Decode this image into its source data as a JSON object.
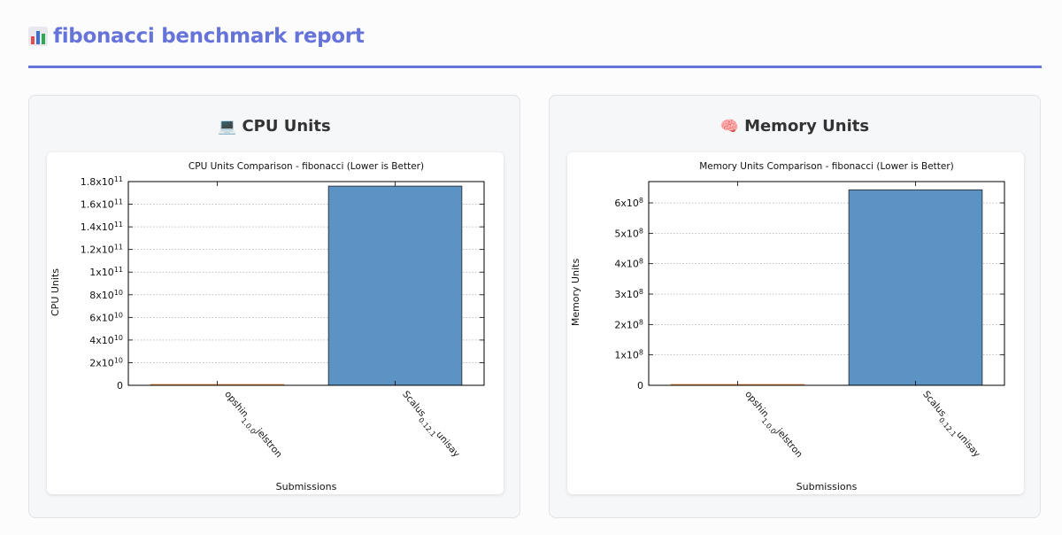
{
  "page": {
    "title_icon": "bar-chart-icon",
    "title": "fibonacci benchmark report"
  },
  "panels": [
    {
      "heading": "CPU Units",
      "icon": "laptop-icon"
    },
    {
      "heading": "Memory Units",
      "icon": "brain-icon"
    }
  ],
  "chart_data": [
    {
      "type": "bar",
      "title": "CPU Units Comparison - fibonacci (Lower is Better)",
      "xlabel": "Submissions",
      "ylabel": "CPU Units",
      "categories": [
        "opshin_1.0.0_jelstron",
        "Scalus_0.12.1_unisay"
      ],
      "values": [
        120000000,
        176000000000
      ],
      "bar_colors": [
        "#e08a3c",
        "#5b93c4"
      ],
      "ylim": [
        0,
        180000000000
      ],
      "yticks": [
        {
          "v": 0,
          "m": "0",
          "e": ""
        },
        {
          "v": 20000000000,
          "m": "2x10",
          "e": "10"
        },
        {
          "v": 40000000000,
          "m": "4x10",
          "e": "10"
        },
        {
          "v": 60000000000,
          "m": "6x10",
          "e": "10"
        },
        {
          "v": 80000000000,
          "m": "8x10",
          "e": "10"
        },
        {
          "v": 100000000000,
          "m": "1x10",
          "e": "11"
        },
        {
          "v": 120000000000,
          "m": "1.2x10",
          "e": "11"
        },
        {
          "v": 140000000000,
          "m": "1.4x10",
          "e": "11"
        },
        {
          "v": 160000000000,
          "m": "1.6x10",
          "e": "11"
        },
        {
          "v": 180000000000,
          "m": "1.8x10",
          "e": "11"
        }
      ],
      "grid": true
    },
    {
      "type": "bar",
      "title": "Memory Units Comparison - fibonacci (Lower is Better)",
      "xlabel": "Submissions",
      "ylabel": "Memory Units",
      "categories": [
        "opshin_1.0.0_jelstron",
        "Scalus_0.12.1_unisay"
      ],
      "values": [
        2000000,
        643000000
      ],
      "bar_colors": [
        "#e08a3c",
        "#5b93c4"
      ],
      "ylim": [
        0,
        670000000
      ],
      "yticks": [
        {
          "v": 0,
          "m": "0",
          "e": ""
        },
        {
          "v": 100000000,
          "m": "1x10",
          "e": "8"
        },
        {
          "v": 200000000,
          "m": "2x10",
          "e": "8"
        },
        {
          "v": 300000000,
          "m": "3x10",
          "e": "8"
        },
        {
          "v": 400000000,
          "m": "4x10",
          "e": "8"
        },
        {
          "v": 500000000,
          "m": "5x10",
          "e": "8"
        },
        {
          "v": 600000000,
          "m": "6x10",
          "e": "8"
        }
      ],
      "grid": true
    }
  ]
}
